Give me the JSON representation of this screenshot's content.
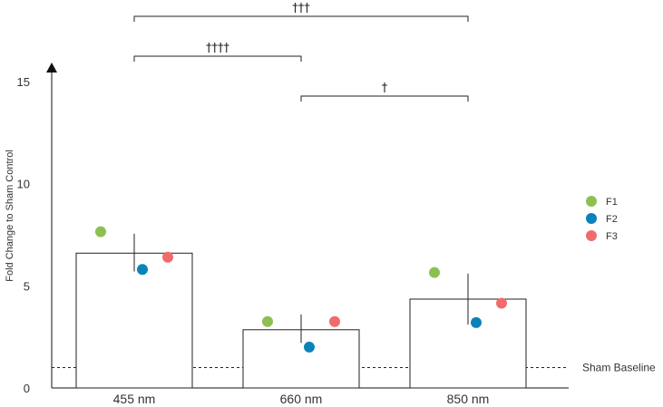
{
  "chart_data": {
    "type": "bar",
    "title": "",
    "xlabel": "",
    "ylabel": "Fold Change to Sham Control",
    "categories": [
      "455 nm",
      "660 nm",
      "850 nm"
    ],
    "values": [
      6.6,
      2.85,
      4.35
    ],
    "error_high": [
      7.55,
      3.6,
      5.6
    ],
    "error_low": [
      5.7,
      2.2,
      3.1
    ],
    "points": [
      {
        "series": "F1",
        "values": [
          7.65,
          3.25,
          5.65
        ]
      },
      {
        "series": "F2",
        "values": [
          5.8,
          2.0,
          3.2
        ]
      },
      {
        "series": "F3",
        "values": [
          6.4,
          3.25,
          4.15
        ]
      }
    ],
    "ylim": [
      0,
      15
    ],
    "yticks": [
      "0",
      "5",
      "10",
      "15"
    ],
    "ytick_values": [
      0,
      5,
      10,
      15
    ],
    "grid": false,
    "legend": {
      "position": "right",
      "entries": [
        {
          "label": "F1",
          "color": "#8cc152"
        },
        {
          "label": "F2",
          "color": "#0a83b8"
        },
        {
          "label": "F3",
          "color": "#f06c6c"
        }
      ]
    },
    "baseline": {
      "label": "Sham Baseline",
      "value": 1.0
    },
    "significance": [
      {
        "from": 0,
        "to": 2,
        "label": "†††",
        "level": 3
      },
      {
        "from": 0,
        "to": 1,
        "label": "††††",
        "level": 2
      },
      {
        "from": 1,
        "to": 2,
        "label": "†",
        "level": 1
      }
    ]
  }
}
